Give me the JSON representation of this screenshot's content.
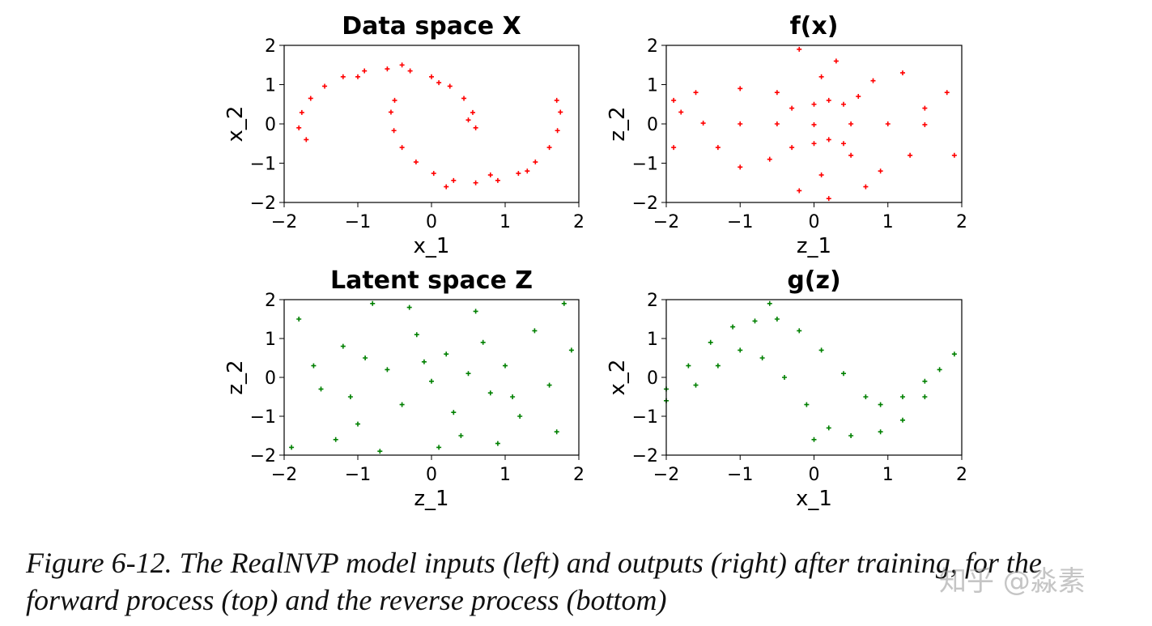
{
  "chart_data": [
    {
      "type": "scatter",
      "title": "Data space X",
      "xlabel": "x_1",
      "ylabel": "x_2",
      "xlim": [
        -2,
        2
      ],
      "ylim": [
        -2,
        2
      ],
      "xticks": [
        "-2",
        "-1",
        "0",
        "1",
        "2"
      ],
      "yticks": [
        "-2",
        "-1",
        "0",
        "1",
        "2"
      ],
      "marker": "+",
      "color": "#ff0000",
      "points": [
        [
          0.6,
          -0.1
        ],
        [
          0.56,
          0.29
        ],
        [
          0.44,
          0.65
        ],
        [
          0.25,
          0.96
        ],
        [
          0.0,
          1.2
        ],
        [
          -0.29,
          1.35
        ],
        [
          -0.6,
          1.4
        ],
        [
          -0.91,
          1.35
        ],
        [
          -1.2,
          1.2
        ],
        [
          -1.45,
          0.96
        ],
        [
          -1.64,
          0.65
        ],
        [
          -1.76,
          0.29
        ],
        [
          -1.8,
          -0.1
        ],
        [
          -1.7,
          -0.4
        ],
        [
          0.5,
          0.1
        ],
        [
          -0.4,
          1.5
        ],
        [
          -1.0,
          1.2
        ],
        [
          0.1,
          1.05
        ],
        [
          1.75,
          0.3
        ],
        [
          1.71,
          -0.17
        ],
        [
          1.6,
          -0.6
        ],
        [
          1.41,
          -0.97
        ],
        [
          1.18,
          -1.26
        ],
        [
          0.9,
          -1.44
        ],
        [
          0.6,
          -1.5
        ],
        [
          0.3,
          -1.44
        ],
        [
          0.03,
          -1.26
        ],
        [
          -0.21,
          -0.97
        ],
        [
          -0.4,
          -0.6
        ],
        [
          -0.51,
          -0.17
        ],
        [
          -0.55,
          0.3
        ],
        [
          -0.5,
          0.6
        ],
        [
          0.8,
          -1.3
        ],
        [
          1.3,
          -1.2
        ],
        [
          0.2,
          -1.6
        ],
        [
          1.7,
          0.6
        ]
      ]
    },
    {
      "type": "scatter",
      "title": "f(x)",
      "xlabel": "z_1",
      "ylabel": "z_2",
      "xlim": [
        -2,
        2
      ],
      "ylim": [
        -2,
        2
      ],
      "xticks": [
        "-2",
        "-1",
        "0",
        "1",
        "2"
      ],
      "yticks": [
        "-2",
        "-1",
        "0",
        "1",
        "2"
      ],
      "marker": "+",
      "color": "#ff0000",
      "points": [
        [
          0,
          0.5
        ],
        [
          0.2,
          0.6
        ],
        [
          -0.3,
          0.4
        ],
        [
          0.4,
          0.5
        ],
        [
          0.6,
          0.7
        ],
        [
          -0.5,
          0.8
        ],
        [
          0.1,
          1.2
        ],
        [
          0.3,
          1.6
        ],
        [
          -0.2,
          1.9
        ],
        [
          0.8,
          1.1
        ],
        [
          1.2,
          1.3
        ],
        [
          -1.0,
          0.9
        ],
        [
          -1.6,
          0.8
        ],
        [
          -1.9,
          0.6
        ],
        [
          1.5,
          0.4
        ],
        [
          0,
          -0.5
        ],
        [
          0.2,
          -0.4
        ],
        [
          -0.3,
          -0.6
        ],
        [
          0.4,
          -0.5
        ],
        [
          0.5,
          -0.8
        ],
        [
          -0.6,
          -0.9
        ],
        [
          0.1,
          -1.3
        ],
        [
          -0.2,
          -1.7
        ],
        [
          0.2,
          -1.9
        ],
        [
          0.9,
          -1.2
        ],
        [
          1.3,
          -0.8
        ],
        [
          1.9,
          -0.8
        ],
        [
          -1.0,
          -1.1
        ],
        [
          -1.3,
          -0.6
        ],
        [
          -1.9,
          -0.6
        ],
        [
          -1.5,
          0.02
        ],
        [
          -1.0,
          0.0
        ],
        [
          -0.5,
          0.0
        ],
        [
          0.0,
          -0.02
        ],
        [
          0.5,
          0.0
        ],
        [
          1.0,
          0.0
        ],
        [
          1.5,
          -0.02
        ],
        [
          -1.8,
          0.3
        ],
        [
          1.8,
          0.8
        ],
        [
          0.7,
          -1.6
        ]
      ]
    },
    {
      "type": "scatter",
      "title": "Latent space Z",
      "xlabel": "z_1",
      "ylabel": "z_2",
      "xlim": [
        -2,
        2
      ],
      "ylim": [
        -2,
        2
      ],
      "xticks": [
        "-2",
        "-1",
        "0",
        "1",
        "2"
      ],
      "yticks": [
        "-2",
        "-1",
        "0",
        "1",
        "2"
      ],
      "marker": "+",
      "color": "#008000",
      "points": [
        [
          -1.8,
          1.5
        ],
        [
          -1.5,
          -0.3
        ],
        [
          -1.2,
          0.8
        ],
        [
          -1.0,
          -1.2
        ],
        [
          -0.8,
          1.9
        ],
        [
          -0.6,
          0.2
        ],
        [
          -0.4,
          -0.7
        ],
        [
          -0.2,
          1.1
        ],
        [
          0.0,
          -0.1
        ],
        [
          0.2,
          0.6
        ],
        [
          0.4,
          -1.5
        ],
        [
          0.6,
          1.7
        ],
        [
          0.8,
          -0.4
        ],
        [
          1.0,
          0.3
        ],
        [
          1.2,
          -1.0
        ],
        [
          1.4,
          1.2
        ],
        [
          1.6,
          -0.2
        ],
        [
          1.9,
          0.7
        ],
        [
          -1.9,
          -1.8
        ],
        [
          -1.3,
          -1.6
        ],
        [
          -0.7,
          -1.9
        ],
        [
          0.1,
          -1.8
        ],
        [
          0.9,
          -1.7
        ],
        [
          1.7,
          -1.4
        ],
        [
          -1.6,
          0.3
        ],
        [
          -0.9,
          0.5
        ],
        [
          -0.1,
          0.4
        ],
        [
          0.5,
          0.1
        ],
        [
          1.1,
          -0.5
        ],
        [
          1.8,
          1.9
        ],
        [
          -0.3,
          1.8
        ],
        [
          0.3,
          -0.9
        ],
        [
          -1.1,
          -0.5
        ],
        [
          0.7,
          0.9
        ]
      ]
    },
    {
      "type": "scatter",
      "title": "g(z)",
      "xlabel": "x_1",
      "ylabel": "x_2",
      "xlim": [
        -2,
        2
      ],
      "ylim": [
        -2,
        2
      ],
      "xticks": [
        "-2",
        "-1",
        "0",
        "1",
        "2"
      ],
      "yticks": [
        "-2",
        "-1",
        "0",
        "1",
        "2"
      ],
      "marker": "+",
      "color": "#008000",
      "points": [
        [
          -2.0,
          -0.3
        ],
        [
          -1.7,
          0.3
        ],
        [
          -1.4,
          0.9
        ],
        [
          -1.1,
          1.3
        ],
        [
          -0.8,
          1.45
        ],
        [
          -0.5,
          1.5
        ],
        [
          -0.2,
          1.2
        ],
        [
          0.1,
          0.7
        ],
        [
          0.4,
          0.1
        ],
        [
          0.7,
          -0.5
        ],
        [
          0.9,
          -0.7
        ],
        [
          1.2,
          -0.5
        ],
        [
          1.5,
          -0.1
        ],
        [
          -2.0,
          -0.6
        ],
        [
          -1.6,
          -0.2
        ],
        [
          -1.3,
          0.3
        ],
        [
          -1.0,
          0.7
        ],
        [
          -0.7,
          0.5
        ],
        [
          -0.4,
          0.0
        ],
        [
          -0.1,
          -0.7
        ],
        [
          0.2,
          -1.3
        ],
        [
          0.5,
          -1.5
        ],
        [
          0.9,
          -1.4
        ],
        [
          1.2,
          -1.1
        ],
        [
          1.5,
          -0.5
        ],
        [
          1.7,
          0.2
        ],
        [
          1.9,
          0.6
        ],
        [
          -0.6,
          1.9
        ],
        [
          0.0,
          -1.6
        ]
      ]
    }
  ],
  "caption": {
    "line1": "Figure 6-12. The RealNVP model inputs (left) and outputs (right) after training, for the",
    "line2": "forward process (top) and the reverse process (bottom)"
  },
  "watermark": "知乎 @淼素"
}
